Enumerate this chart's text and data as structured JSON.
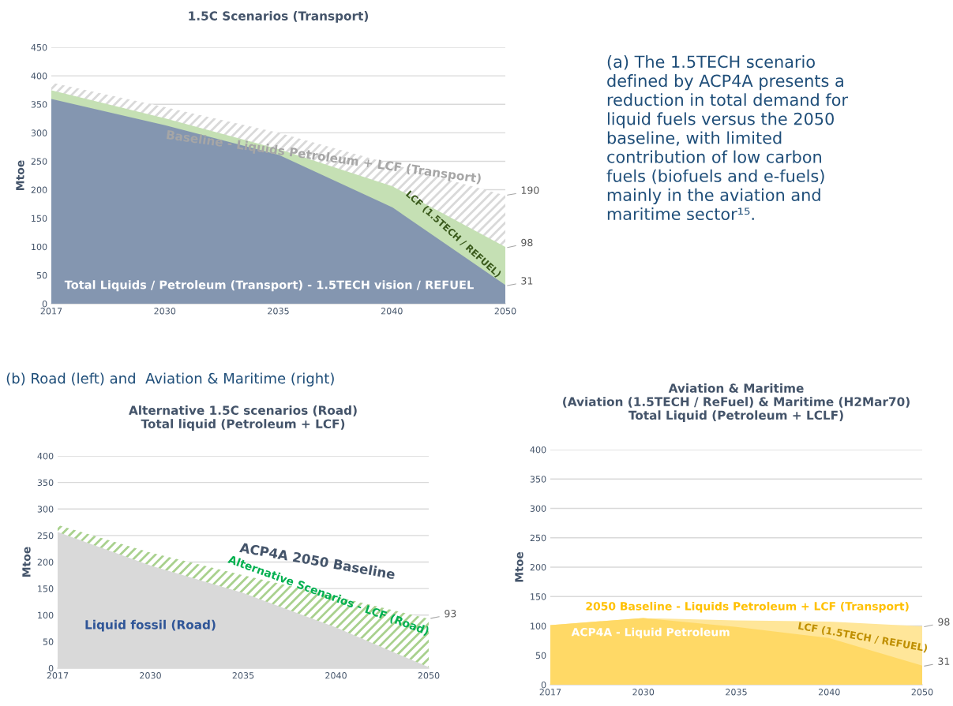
{
  "chart_data": [
    {
      "type": "area",
      "title": "1.5C Scenarios (Transport)",
      "ylabel": "Mtoe",
      "categories": [
        "2017",
        "2030",
        "2035",
        "2040",
        "2050"
      ],
      "ylim": [
        0,
        450
      ],
      "yticks": [
        0,
        50,
        100,
        150,
        200,
        250,
        300,
        350,
        400,
        450
      ],
      "grid": "y",
      "legend": false,
      "series": [
        {
          "name": "Total Liquids / Petroleum (Transport) - 1.5TECH vision / REFUEL",
          "color": "#8496b0",
          "values": [
            358,
            312,
            260,
            168,
            31
          ],
          "value_labels": [
            null,
            null,
            null,
            null,
            "31"
          ]
        },
        {
          "name": "LCF (1.5TECH / REFUEL)",
          "color": "#c5e0b4",
          "values": [
            373,
            324,
            270,
            205,
            98
          ],
          "value_labels": [
            null,
            null,
            null,
            null,
            "98"
          ]
        },
        {
          "name": "Baseline - Liquids Petroleum + LCF (Transport)",
          "color": "#d9d9d9",
          "values": [
            388,
            345,
            300,
            245,
            190
          ],
          "value_labels": [
            null,
            null,
            null,
            null,
            "190"
          ]
        }
      ]
    },
    {
      "type": "other",
      "annotations": [
        "(a) The 1.5TECH scenario\ndefined by ACP4A presents a\nreduction in total demand for\nliquid fuels versus the 2050\nbaseline, with limited\ncontribution of low carbon\nfuels (biofuels and e-fuels)\nmainly in the aviation and\nmaritime sector¹⁵."
      ]
    },
    {
      "type": "area",
      "title": "Alternative 1.5C scenarios (Road)\nTotal liquid (Petroleum + LCF)",
      "ylabel": "Mtoe",
      "categories": [
        "2017",
        "2030",
        "2035",
        "2040",
        "2050"
      ],
      "ylim": [
        0,
        400
      ],
      "yticks": [
        0,
        50,
        100,
        150,
        200,
        250,
        300,
        350,
        400
      ],
      "grid": "y",
      "legend": false,
      "annotations": [
        "(b) Road (left) and  Aviation & Maritime (right)",
        "ACP4A 2050 Baseline"
      ],
      "series": [
        {
          "name": "Liquid fossil (Road)",
          "color": "#d9d9d9",
          "values": [
            255,
            192,
            140,
            75,
            0
          ]
        },
        {
          "name": "Alternative Scenarios - LCF (Road)",
          "color": "#a9d18e",
          "values": [
            270,
            218,
            175,
            135,
            93
          ],
          "value_labels": [
            null,
            null,
            null,
            null,
            "93"
          ]
        }
      ]
    },
    {
      "type": "area",
      "title": "Aviation & Maritime\n(Aviation (1.5TECH / ReFuel) & Maritime (H2Mar70)\nTotal Liquid (Petroleum + LCLF)",
      "ylabel": "Mtoe",
      "categories": [
        "2017",
        "2030",
        "2035",
        "2040",
        "2050"
      ],
      "ylim": [
        0,
        400
      ],
      "yticks": [
        0,
        50,
        100,
        150,
        200,
        250,
        300,
        350,
        400
      ],
      "grid": "y",
      "legend": false,
      "annotations": [
        "2050 Baseline - Liquids Petroleum + LCF (Transport)"
      ],
      "series": [
        {
          "name": "ACP4A - Liquid Petroleum",
          "color": "#ffd966",
          "values": [
            100,
            112,
            97,
            78,
            31
          ],
          "value_labels": [
            null,
            null,
            null,
            null,
            "31"
          ]
        },
        {
          "name": "LCF (1.5TECH / REFUEL)",
          "color": "#ffe699",
          "values": [
            100,
            112,
            108,
            106,
            98
          ],
          "value_labels": [
            null,
            null,
            null,
            null,
            "98"
          ]
        }
      ]
    }
  ]
}
